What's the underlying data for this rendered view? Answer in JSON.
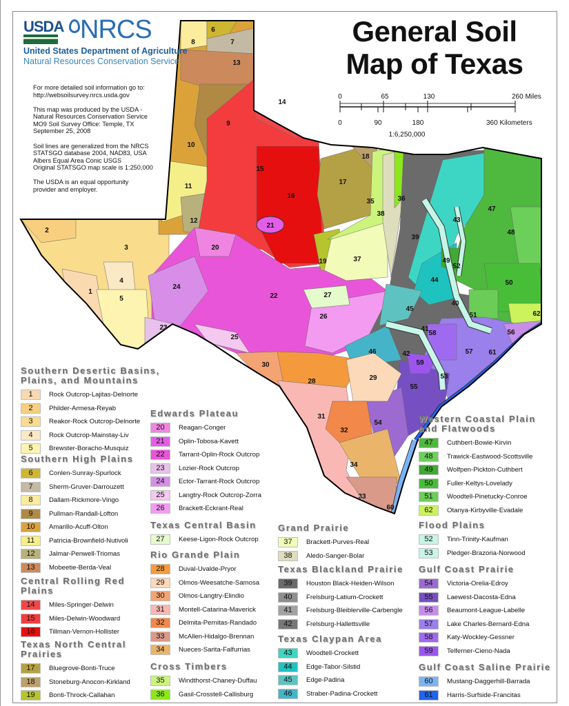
{
  "header": {
    "usda_logo": "USDA",
    "nrcs_logo": "NRCS",
    "department": "United States Department of Agriculture",
    "service": "Natural Resources Conservation Service",
    "title": "General Soil Map of Texas"
  },
  "info": [
    "For more detailed soil information go to:\nhttp://websoilsurvey.nrcs.usda.gov",
    "This map was produced by the USDA -\nNatural Resources Conservation Service\nMO9 Soil Survey Office: Temple, TX\nSeptember 25, 2008",
    "Soil lines are generalized from the NRCS\nSTATSGO database 2004, NAD83, USA\nAlbers Equal Area Conic USGS\nOriginal STATSGO map scale is 1:250,000",
    "The USDA is an equal opportunity\nprovider and employer."
  ],
  "scale": {
    "miles": [
      "0",
      "65",
      "130",
      "260 Miles"
    ],
    "km": [
      "0",
      "90",
      "180",
      "360 Kilometers"
    ],
    "ratio": "1:6,250,000"
  },
  "outline_color": "#000000",
  "legend": [
    {
      "title": "Southern Desertic Basins, Plains, and Mountains",
      "items": [
        {
          "code": 1,
          "name": "Rock Outcrop-Lajitas-Delnorte",
          "color": "#f9d9b0"
        },
        {
          "code": 2,
          "name": "Philder-Armesa-Reyab",
          "color": "#f7cf7e"
        },
        {
          "code": 3,
          "name": "Reakor-Rock Outcrop-Delnorte",
          "color": "#f9dc8c"
        },
        {
          "code": 4,
          "name": "Rock Outcrop-Mainstay-Liv",
          "color": "#fbe8c4"
        },
        {
          "code": 5,
          "name": "Brewster-Boracho-Musquiz",
          "color": "#fcf4b0"
        }
      ]
    },
    {
      "title": "Southern High Plains",
      "items": [
        {
          "code": 6,
          "name": "Conlen-Sunray-Spurlock",
          "color": "#cfb630"
        },
        {
          "code": 7,
          "name": "Sherm-Gruver-Darrouzett",
          "color": "#c4b9a3"
        },
        {
          "code": 8,
          "name": "Dallam-Rickmore-Vingo",
          "color": "#fbec9e"
        },
        {
          "code": 9,
          "name": "Pullman-Randall-Lofton",
          "color": "#b08a45"
        },
        {
          "code": 10,
          "name": "Amarillo-Acuff-Olton",
          "color": "#dba23a"
        },
        {
          "code": 11,
          "name": "Patricia-Brownfield-Nutivoli",
          "color": "#f5ef8a"
        },
        {
          "code": 12,
          "name": "Jalmar-Penwell-Triomas",
          "color": "#b8b17b"
        },
        {
          "code": 13,
          "name": "Mobeetie-Berda-Veal",
          "color": "#cc8a5c"
        }
      ]
    },
    {
      "title": "Central Rolling Red Plains",
      "items": [
        {
          "code": 14,
          "name": "Miles-Springer-Delwin",
          "color": "#f2474a"
        },
        {
          "code": 15,
          "name": "Miles-Delwin-Woodward",
          "color": "#f33c3e"
        },
        {
          "code": 16,
          "name": "Tillman-Vernon-Hollister",
          "color": "#e60f0f"
        }
      ]
    },
    {
      "title": "Texas North Central Prairies",
      "items": [
        {
          "code": 17,
          "name": "Bluegrove-Bonti-Truce",
          "color": "#b4a145"
        },
        {
          "code": 18,
          "name": "Stoneburg-Anocon-Kirkland",
          "color": "#bca06c"
        },
        {
          "code": 19,
          "name": "Bonti-Throck-Callahan",
          "color": "#b7c42d"
        }
      ]
    },
    {
      "title": "Edwards Plateau",
      "items": [
        {
          "code": 20,
          "name": "Reagan-Conger",
          "color": "#ef85e0"
        },
        {
          "code": 21,
          "name": "Oplin-Tobosa-Kavett",
          "color": "#e35ee8"
        },
        {
          "code": 22,
          "name": "Tarrant-Oplin-Rock Outcrop",
          "color": "#e955d8"
        },
        {
          "code": 23,
          "name": "Lozier-Rock Outcrop",
          "color": "#e8c2ec"
        },
        {
          "code": 24,
          "name": "Ector-Tarrant-Rock Outcrop",
          "color": "#d88ee8"
        },
        {
          "code": 25,
          "name": "Langtry-Rock Outcrop-Zorra",
          "color": "#f4c8ef"
        },
        {
          "code": 26,
          "name": "Brackett-Eckrant-Real",
          "color": "#f29bf0"
        }
      ]
    },
    {
      "title": "Texas Central Basin",
      "items": [
        {
          "code": 27,
          "name": "Keese-Ligon-Rock Outcrop",
          "color": "#e4fbcc"
        }
      ]
    },
    {
      "title": "Rio Grande Plain",
      "items": [
        {
          "code": 28,
          "name": "Duval-Uvalde-Pryor",
          "color": "#f59a3c"
        },
        {
          "code": 29,
          "name": "Olmos-Weesatche-Samosa",
          "color": "#fcd9b8"
        },
        {
          "code": 30,
          "name": "Olmos-Langtry-Elindio",
          "color": "#f4a373"
        },
        {
          "code": 31,
          "name": "Montell-Catarina-Maverick",
          "color": "#f9b8b4"
        },
        {
          "code": 32,
          "name": "Delmita-Pernitas-Randado",
          "color": "#f2884a"
        },
        {
          "code": 33,
          "name": "McAllen-Hidalgo-Brennan",
          "color": "#d99a8a"
        },
        {
          "code": 34,
          "name": "Nueces-Sarita-Falfurrias",
          "color": "#eab46a"
        }
      ]
    },
    {
      "title": "Cross Timbers",
      "items": [
        {
          "code": 35,
          "name": "Windthorst-Chaney-Duffau",
          "color": "#ccf47c"
        },
        {
          "code": 36,
          "name": "Gasil-Crosstell-Callisburg",
          "color": "#8ce81a"
        }
      ]
    },
    {
      "title": "Grand Prairie",
      "items": [
        {
          "code": 37,
          "name": "Brackett-Purves-Real",
          "color": "#f2fcb8"
        },
        {
          "code": 38,
          "name": "Aledo-Sanger-Bolar",
          "color": "#deddbd"
        }
      ]
    },
    {
      "title": "Texas Blackland Prairie",
      "items": [
        {
          "code": 39,
          "name": "Houston Black-Heiden-Wilson",
          "color": "#6b6b6b"
        },
        {
          "code": 40,
          "name": "Frelsburg-Latium-Crockett",
          "color": "#8f8f8f"
        },
        {
          "code": 41,
          "name": "Frelsburg-Bleiblerville-Carbengle",
          "color": "#a2a2a2"
        },
        {
          "code": 42,
          "name": "Frelsburg-Hallettsville",
          "color": "#777777"
        }
      ]
    },
    {
      "title": "Texas Claypan Area",
      "items": [
        {
          "code": 43,
          "name": "Woodtell-Crockett",
          "color": "#3dd6c4"
        },
        {
          "code": 44,
          "name": "Edge-Tabor-Silstid",
          "color": "#1ec3bf"
        },
        {
          "code": 45,
          "name": "Edge-Padina",
          "color": "#5ec3c0"
        },
        {
          "code": 46,
          "name": "Straber-Padina-Crockett",
          "color": "#45b4c8"
        }
      ]
    },
    {
      "title": "Western Coastal Plain and Flatwoods",
      "items": [
        {
          "code": 47,
          "name": "Cuthbert-Bowie-Kirvin",
          "color": "#4fb83e"
        },
        {
          "code": 48,
          "name": "Trawick-Eastwood-Scottsville",
          "color": "#6ccf5a"
        },
        {
          "code": 49,
          "name": "Wolfpen-Pickton-Cuthbert",
          "color": "#43a834"
        },
        {
          "code": 50,
          "name": "Fuller-Keltys-Lovelady",
          "color": "#48be38"
        },
        {
          "code": 51,
          "name": "Woodtell-Pinetucky-Conroe",
          "color": "#6ccc58"
        },
        {
          "code": 62,
          "name": "Otanya-Kirbyville-Evadale",
          "color": "#ccf35c"
        }
      ]
    },
    {
      "title": "Flood Plains",
      "items": [
        {
          "code": 52,
          "name": "Tinn-Trinity-Kaufman",
          "color": "#c4f5e6"
        },
        {
          "code": 53,
          "name": "Pledger-Brazoria-Norwood",
          "color": "#c8f6ea"
        }
      ]
    },
    {
      "title": "Gulf Coast Prairie",
      "items": [
        {
          "code": 54,
          "name": "Victoria-Orelia-Edroy",
          "color": "#9c6ad0"
        },
        {
          "code": 55,
          "name": "Laewest-Dacosta-Edna",
          "color": "#7650c2"
        },
        {
          "code": 56,
          "name": "Beaumont-League-Labelle",
          "color": "#c68ee8"
        },
        {
          "code": 57,
          "name": "Lake Charles-Bernard-Edna",
          "color": "#9a80ea"
        },
        {
          "code": 58,
          "name": "Katy-Wockley-Gessner",
          "color": "#a06af0"
        },
        {
          "code": 59,
          "name": "Telferner-Cieno-Nada",
          "color": "#9c56ee"
        }
      ]
    },
    {
      "title": "Gulf Coast Saline Prairie",
      "items": [
        {
          "code": 60,
          "name": "Mustang-Daggerhill-Barrada",
          "color": "#7ab4f6"
        },
        {
          "code": 61,
          "name": "Harris-Surfside-Francitas",
          "color": "#1e64f0"
        }
      ]
    }
  ]
}
